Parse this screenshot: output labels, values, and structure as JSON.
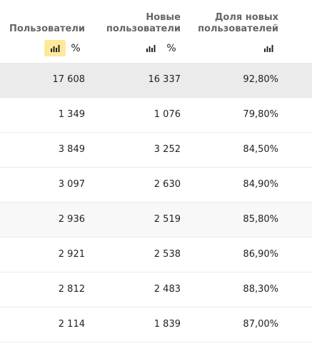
{
  "header": {
    "users": [
      "Пользователи"
    ],
    "new_users": [
      "Новые",
      "пользователи"
    ],
    "new_share": [
      "Доля новых",
      "пользователей"
    ],
    "pct_symbol": "%"
  },
  "rows": [
    {
      "users": "17 608",
      "new_users": "16 337",
      "share": "92,80%"
    },
    {
      "users": "1 349",
      "new_users": "1 076",
      "share": "79,80%"
    },
    {
      "users": "3 849",
      "new_users": "3 252",
      "share": "84,50%"
    },
    {
      "users": "3 097",
      "new_users": "2 630",
      "share": "84,90%"
    },
    {
      "users": "2 936",
      "new_users": "2 519",
      "share": "85,80%"
    },
    {
      "users": "2 921",
      "new_users": "2 538",
      "share": "86,90%"
    },
    {
      "users": "2 812",
      "new_users": "2 483",
      "share": "88,30%"
    },
    {
      "users": "2 114",
      "new_users": "1 839",
      "share": "87,00%"
    }
  ],
  "colors": {
    "active_toggle": "#fce99b",
    "total_row": "#ebebeb",
    "header_text": "#666666"
  },
  "icons": {
    "bar_chart": "bar-chart-icon",
    "percent": "percent-icon"
  }
}
